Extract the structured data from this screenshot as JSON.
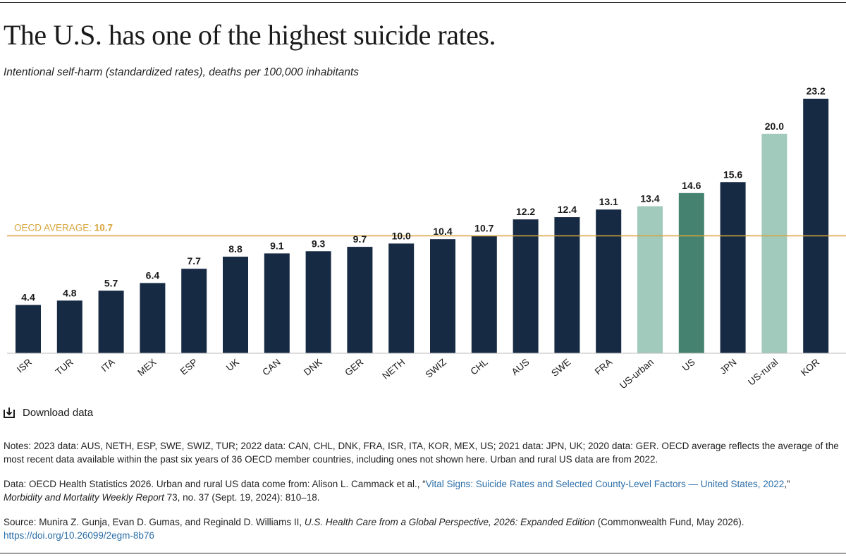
{
  "title": "The U.S. has one of the highest suicide rates.",
  "subtitle": "Intentional self-harm (standardized rates), deaths per 100,000 inhabitants",
  "download_label": "Download data",
  "notes": "Notes: 2023 data: AUS, NETH, ESP, SWE, SWIZ, TUR; 2022 data: CAN, CHL, DNK, FRA, ISR, ITA, KOR, MEX, US; 2021 data: JPN, UK; 2020 data: GER. OECD average reflects the average of the most recent data available within the past six years of 36 OECD member countries, including ones not shown here. Urban and rural US data are from 2022.",
  "data_source": {
    "prefix": "Data: OECD Health Statistics 2026. Urban and rural US data come from: Alison L. Cammack et al., “",
    "link": "Vital Signs: Suicide Rates and Selected County-Level Factors — United States, 2022",
    "after_link": ",”",
    "journal": "Morbidity and Mortality Weekly Report",
    "rest": " 73, no. 37 (Sept. 19, 2024): 810–18."
  },
  "source": {
    "prefix": "Source: Munira Z. Gunja, Evan D. Gumas, and Reginald D. Williams II, ",
    "book": "U.S. Health Care from a Global Perspective, 2026: Expanded Edition",
    "suffix": " (Commonwealth Fund, May 2026).",
    "doi": "https://doi.org/10.26099/2egm-8b76"
  },
  "colors": {
    "bar_default": "#172a44",
    "bar_us": "#458370",
    "bar_us_sub": "#a1c9bc",
    "average_line": "#d7a53c",
    "link": "#2b6ea8"
  },
  "chart_data": {
    "type": "bar",
    "categories": [
      "ISR",
      "TUR",
      "ITA",
      "MEX",
      "ESP",
      "UK",
      "CAN",
      "DNK",
      "GER",
      "NETH",
      "SWIZ",
      "CHL",
      "AUS",
      "SWE",
      "FRA",
      "US-urban",
      "US",
      "JPN",
      "US-rural",
      "KOR"
    ],
    "values": [
      4.4,
      4.8,
      5.7,
      6.4,
      7.7,
      8.8,
      9.1,
      9.3,
      9.7,
      10.0,
      10.4,
      10.7,
      12.2,
      12.4,
      13.1,
      13.4,
      14.6,
      15.6,
      20.0,
      23.2
    ],
    "value_labels": [
      "4.4",
      "4.8",
      "5.7",
      "6.4",
      "7.7",
      "8.8",
      "9.1",
      "9.3",
      "9.7",
      "10.0",
      "10.4",
      "10.7",
      "12.2",
      "12.4",
      "13.1",
      "13.4",
      "14.6",
      "15.6",
      "20.0",
      "23.2"
    ],
    "bar_color_keys": [
      "bar_default",
      "bar_default",
      "bar_default",
      "bar_default",
      "bar_default",
      "bar_default",
      "bar_default",
      "bar_default",
      "bar_default",
      "bar_default",
      "bar_default",
      "bar_default",
      "bar_default",
      "bar_default",
      "bar_default",
      "bar_us_sub",
      "bar_us",
      "bar_default",
      "bar_us_sub",
      "bar_default"
    ],
    "reference_line": {
      "label": "OECD AVERAGE:",
      "value": 10.7,
      "value_label": "10.7"
    },
    "ylim": [
      0,
      23.2
    ],
    "grid": false,
    "xlabel": "",
    "ylabel": ""
  }
}
